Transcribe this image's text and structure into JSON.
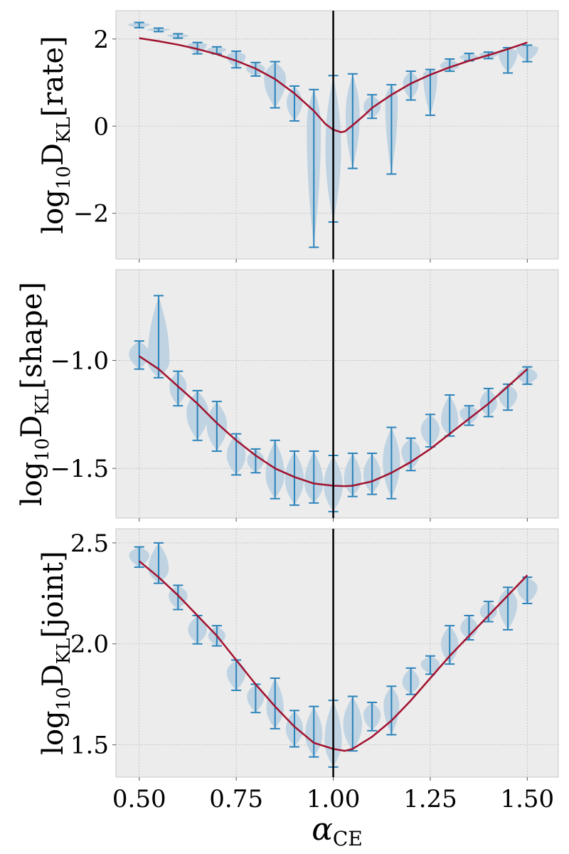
{
  "figure": {
    "x_label": "α",
    "x_label_sub": "CE",
    "x_ticks": [
      "0.50",
      "0.75",
      "1.00",
      "1.25",
      "1.50"
    ]
  },
  "colors": {
    "panel_bg": "#ececec",
    "violin_fill": "#b7cfe0",
    "violin_stroke": "#2b83ba",
    "fit_line": "#a1112e",
    "vline": "#000000",
    "grid": "#bdbdbd"
  },
  "chart_data": [
    {
      "type": "violin",
      "ylabel_pre": "log",
      "ylabel_base": "10",
      "ylabel_d": "D",
      "ylabel_sub": "KL",
      "ylabel_bracket": "[rate]",
      "y_tick_values": [
        2,
        0,
        -2
      ],
      "y_tick_labels": [
        "2",
        "0",
        "−2"
      ],
      "xlim": [
        0.44,
        1.58
      ],
      "ylim": [
        -3.05,
        2.65
      ],
      "vline_x": 1.0,
      "grid": true,
      "violins": [
        {
          "x": 0.5,
          "min": 2.26,
          "max": 2.38,
          "center": 2.33,
          "width": 0.7
        },
        {
          "x": 0.55,
          "min": 2.17,
          "max": 2.25,
          "center": 2.22,
          "width": 0.75
        },
        {
          "x": 0.6,
          "min": 2.02,
          "max": 2.12,
          "center": 2.08,
          "width": 0.7
        },
        {
          "x": 0.65,
          "min": 1.66,
          "max": 1.92,
          "center": 1.88,
          "width": 0.6
        },
        {
          "x": 0.7,
          "min": 1.66,
          "max": 1.82,
          "center": 1.76,
          "width": 0.6
        },
        {
          "x": 0.75,
          "min": 1.34,
          "max": 1.72,
          "center": 1.6,
          "width": 0.6
        },
        {
          "x": 0.8,
          "min": 1.15,
          "max": 1.46,
          "center": 1.32,
          "width": 0.6
        },
        {
          "x": 0.85,
          "min": 0.42,
          "max": 1.48,
          "center": 1.1,
          "width": 0.7
        },
        {
          "x": 0.9,
          "min": 0.12,
          "max": 0.92,
          "center": 0.55,
          "width": 0.5
        },
        {
          "x": 0.95,
          "min": -2.78,
          "max": 0.84,
          "center": 0.0,
          "width": 0.45
        },
        {
          "x": 1.0,
          "min": -2.2,
          "max": 1.16,
          "center": -0.5,
          "width": 0.5
        },
        {
          "x": 1.05,
          "min": -0.97,
          "max": 1.2,
          "center": 0.25,
          "width": 0.45
        },
        {
          "x": 1.1,
          "min": 0.18,
          "max": 0.72,
          "center": 0.45,
          "width": 0.55
        },
        {
          "x": 1.15,
          "min": -1.1,
          "max": 0.95,
          "center": 0.6,
          "width": 0.4
        },
        {
          "x": 1.2,
          "min": 0.6,
          "max": 1.26,
          "center": 1.0,
          "width": 0.5
        },
        {
          "x": 1.25,
          "min": 0.25,
          "max": 1.3,
          "center": 1.2,
          "width": 0.45
        },
        {
          "x": 1.3,
          "min": 1.26,
          "max": 1.54,
          "center": 1.38,
          "width": 0.6
        },
        {
          "x": 1.35,
          "min": 1.5,
          "max": 1.67,
          "center": 1.58,
          "width": 0.6
        },
        {
          "x": 1.4,
          "min": 1.55,
          "max": 1.7,
          "center": 1.65,
          "width": 0.6
        },
        {
          "x": 1.45,
          "min": 1.22,
          "max": 1.8,
          "center": 1.7,
          "width": 0.6
        },
        {
          "x": 1.5,
          "min": 1.48,
          "max": 1.86,
          "center": 1.8,
          "width": 0.7
        }
      ],
      "fit_line": {
        "x": [
          0.5,
          0.55,
          0.6,
          0.65,
          0.7,
          0.75,
          0.8,
          0.85,
          0.9,
          0.95,
          0.98,
          1.0,
          1.02,
          1.03,
          1.05,
          1.08,
          1.1,
          1.15,
          1.2,
          1.25,
          1.3,
          1.35,
          1.4,
          1.45,
          1.5
        ],
        "y": [
          2.02,
          1.95,
          1.87,
          1.77,
          1.65,
          1.5,
          1.32,
          1.08,
          0.75,
          0.35,
          0.05,
          -0.08,
          -0.14,
          -0.12,
          0.02,
          0.25,
          0.42,
          0.72,
          0.98,
          1.18,
          1.35,
          1.5,
          1.63,
          1.77,
          1.92
        ]
      }
    },
    {
      "type": "violin",
      "ylabel_pre": "log",
      "ylabel_base": "10",
      "ylabel_d": "D",
      "ylabel_sub": "KL",
      "ylabel_bracket": "[shape]",
      "y_tick_values": [
        -1.0,
        -1.5
      ],
      "y_tick_labels": [
        "−1.0",
        "−1.5"
      ],
      "xlim": [
        0.44,
        1.58
      ],
      "ylim": [
        -1.73,
        -0.58
      ],
      "vline_x": 1.0,
      "grid": true,
      "violins": [
        {
          "x": 0.5,
          "min": -1.04,
          "max": -0.91,
          "center": -0.97,
          "width": 0.65
        },
        {
          "x": 0.55,
          "min": -1.08,
          "max": -0.7,
          "center": -1.0,
          "width": 0.7
        },
        {
          "x": 0.6,
          "min": -1.21,
          "max": -1.05,
          "center": -1.12,
          "width": 0.55
        },
        {
          "x": 0.65,
          "min": -1.37,
          "max": -1.14,
          "center": -1.24,
          "width": 0.7
        },
        {
          "x": 0.7,
          "min": -1.42,
          "max": -1.19,
          "center": -1.3,
          "width": 0.65
        },
        {
          "x": 0.75,
          "min": -1.53,
          "max": -1.34,
          "center": -1.44,
          "width": 0.6
        },
        {
          "x": 0.8,
          "min": -1.52,
          "max": -1.41,
          "center": -1.46,
          "width": 0.55
        },
        {
          "x": 0.85,
          "min": -1.64,
          "max": -1.37,
          "center": -1.53,
          "width": 0.6
        },
        {
          "x": 0.9,
          "min": -1.67,
          "max": -1.42,
          "center": -1.55,
          "width": 0.6
        },
        {
          "x": 0.95,
          "min": -1.66,
          "max": -1.42,
          "center": -1.57,
          "width": 0.6
        },
        {
          "x": 1.0,
          "min": -1.7,
          "max": -1.44,
          "center": -1.58,
          "width": 0.6
        },
        {
          "x": 1.05,
          "min": -1.63,
          "max": -1.43,
          "center": -1.55,
          "width": 0.55
        },
        {
          "x": 1.1,
          "min": -1.62,
          "max": -1.43,
          "center": -1.53,
          "width": 0.55
        },
        {
          "x": 1.15,
          "min": -1.64,
          "max": -1.31,
          "center": -1.47,
          "width": 0.55
        },
        {
          "x": 1.2,
          "min": -1.51,
          "max": -1.36,
          "center": -1.42,
          "width": 0.6
        },
        {
          "x": 1.25,
          "min": -1.4,
          "max": -1.25,
          "center": -1.32,
          "width": 0.6
        },
        {
          "x": 1.3,
          "min": -1.35,
          "max": -1.16,
          "center": -1.28,
          "width": 0.55
        },
        {
          "x": 1.35,
          "min": -1.3,
          "max": -1.21,
          "center": -1.24,
          "width": 0.6
        },
        {
          "x": 1.4,
          "min": -1.26,
          "max": -1.13,
          "center": -1.2,
          "width": 0.55
        },
        {
          "x": 1.45,
          "min": -1.23,
          "max": -1.11,
          "center": -1.16,
          "width": 0.6
        },
        {
          "x": 1.5,
          "min": -1.11,
          "max": -1.03,
          "center": -1.07,
          "width": 0.65
        }
      ],
      "fit_line": {
        "x": [
          0.5,
          0.55,
          0.6,
          0.65,
          0.7,
          0.75,
          0.8,
          0.85,
          0.9,
          0.95,
          1.0,
          1.03,
          1.05,
          1.1,
          1.15,
          1.2,
          1.25,
          1.3,
          1.35,
          1.4,
          1.45,
          1.5
        ],
        "y": [
          -0.98,
          -1.04,
          -1.12,
          -1.2,
          -1.29,
          -1.37,
          -1.44,
          -1.5,
          -1.54,
          -1.57,
          -1.58,
          -1.582,
          -1.58,
          -1.56,
          -1.52,
          -1.47,
          -1.41,
          -1.34,
          -1.27,
          -1.2,
          -1.12,
          -1.04
        ]
      }
    },
    {
      "type": "violin",
      "ylabel_pre": "log",
      "ylabel_base": "10",
      "ylabel_d": "D",
      "ylabel_sub": "KL",
      "ylabel_bracket": "[joint]",
      "y_tick_values": [
        2.5,
        2.0,
        1.5
      ],
      "y_tick_labels": [
        "2.5",
        "2.0",
        "1.5"
      ],
      "xlim": [
        0.44,
        1.58
      ],
      "ylim": [
        1.34,
        2.57
      ],
      "vline_x": 1.0,
      "grid": true,
      "violins": [
        {
          "x": 0.5,
          "min": 2.38,
          "max": 2.48,
          "center": 2.44,
          "width": 0.65
        },
        {
          "x": 0.55,
          "min": 2.3,
          "max": 2.5,
          "center": 2.37,
          "width": 0.65
        },
        {
          "x": 0.6,
          "min": 2.17,
          "max": 2.29,
          "center": 2.24,
          "width": 0.6
        },
        {
          "x": 0.65,
          "min": 2.0,
          "max": 2.14,
          "center": 2.07,
          "width": 0.6
        },
        {
          "x": 0.7,
          "min": 1.99,
          "max": 2.09,
          "center": 2.04,
          "width": 0.55
        },
        {
          "x": 0.75,
          "min": 1.77,
          "max": 1.92,
          "center": 1.86,
          "width": 0.6
        },
        {
          "x": 0.8,
          "min": 1.66,
          "max": 1.8,
          "center": 1.74,
          "width": 0.55
        },
        {
          "x": 0.85,
          "min": 1.58,
          "max": 1.83,
          "center": 1.68,
          "width": 0.55
        },
        {
          "x": 0.9,
          "min": 1.49,
          "max": 1.67,
          "center": 1.58,
          "width": 0.55
        },
        {
          "x": 0.95,
          "min": 1.44,
          "max": 1.69,
          "center": 1.55,
          "width": 0.55
        },
        {
          "x": 1.0,
          "min": 1.39,
          "max": 1.72,
          "center": 1.52,
          "width": 0.55
        },
        {
          "x": 1.05,
          "min": 1.47,
          "max": 1.74,
          "center": 1.6,
          "width": 0.6
        },
        {
          "x": 1.1,
          "min": 1.57,
          "max": 1.71,
          "center": 1.65,
          "width": 0.55
        },
        {
          "x": 1.15,
          "min": 1.55,
          "max": 1.79,
          "center": 1.7,
          "width": 0.5
        },
        {
          "x": 1.2,
          "min": 1.75,
          "max": 1.88,
          "center": 1.81,
          "width": 0.55
        },
        {
          "x": 1.25,
          "min": 1.85,
          "max": 1.94,
          "center": 1.9,
          "width": 0.6
        },
        {
          "x": 1.3,
          "min": 1.9,
          "max": 2.09,
          "center": 2.0,
          "width": 0.55
        },
        {
          "x": 1.35,
          "min": 2.02,
          "max": 2.14,
          "center": 2.08,
          "width": 0.55
        },
        {
          "x": 1.4,
          "min": 2.11,
          "max": 2.21,
          "center": 2.16,
          "width": 0.55
        },
        {
          "x": 1.45,
          "min": 2.07,
          "max": 2.28,
          "center": 2.2,
          "width": 0.6
        },
        {
          "x": 1.5,
          "min": 2.2,
          "max": 2.33,
          "center": 2.28,
          "width": 0.65
        }
      ],
      "fit_line": {
        "x": [
          0.5,
          0.55,
          0.6,
          0.65,
          0.7,
          0.75,
          0.8,
          0.85,
          0.9,
          0.95,
          1.0,
          1.03,
          1.05,
          1.1,
          1.15,
          1.2,
          1.25,
          1.3,
          1.35,
          1.4,
          1.45,
          1.5
        ],
        "y": [
          2.41,
          2.33,
          2.24,
          2.14,
          2.04,
          1.92,
          1.8,
          1.69,
          1.59,
          1.51,
          1.48,
          1.47,
          1.48,
          1.54,
          1.62,
          1.72,
          1.83,
          1.94,
          2.04,
          2.14,
          2.24,
          2.34
        ]
      }
    }
  ]
}
